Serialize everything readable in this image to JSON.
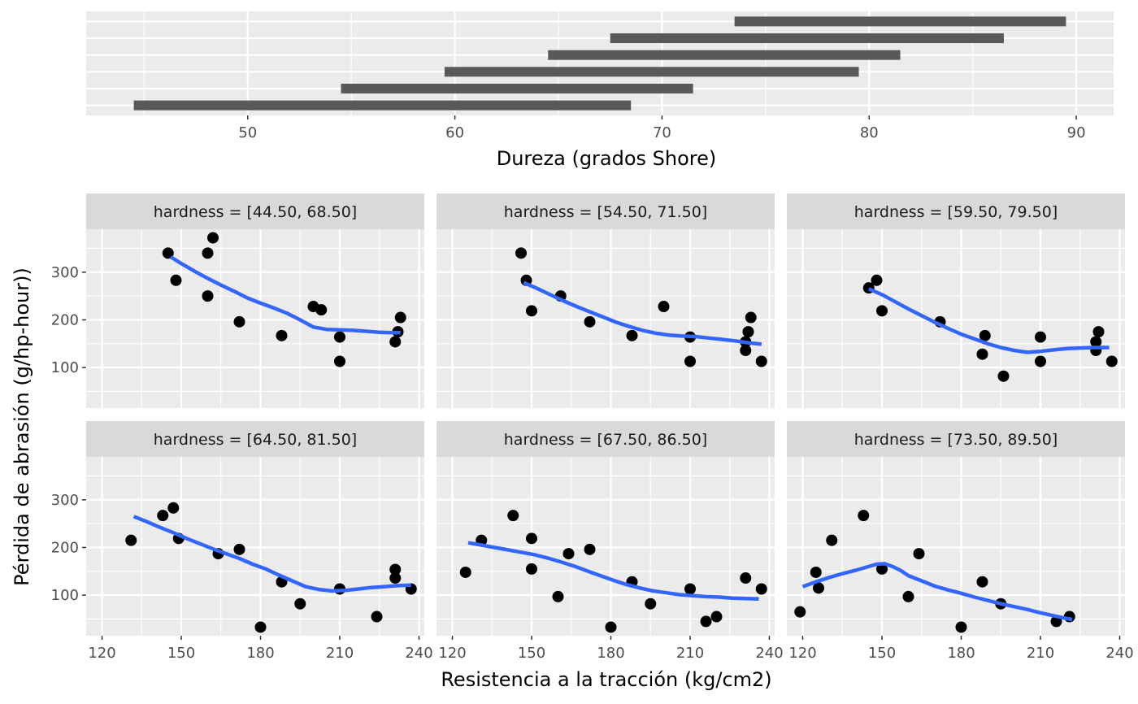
{
  "colors": {
    "panel_bg": "#EBEBEB",
    "grid": "#FFFFFF",
    "strip_bg": "#D9D9D9",
    "bar": "#595959",
    "point": "#000000",
    "smooth": "#3366FF"
  },
  "chart_data": [
    {
      "type": "bar",
      "orientation": "horizontal",
      "xlabel": "Dureza (grados Shore)",
      "xlim": [
        42.2,
        91.8
      ],
      "xticks": [
        50,
        60,
        70,
        80,
        90
      ],
      "xtick_labels": [
        "50",
        "60",
        "70",
        "80",
        "90"
      ],
      "intervals": [
        {
          "low": 44.5,
          "high": 68.5
        },
        {
          "low": 54.5,
          "high": 71.5
        },
        {
          "low": 59.5,
          "high": 79.5
        },
        {
          "low": 64.5,
          "high": 81.5
        },
        {
          "low": 67.5,
          "high": 86.5
        },
        {
          "low": 73.5,
          "high": 89.5
        }
      ]
    },
    {
      "type": "scatter",
      "xlabel": "Resistencia a la tracción (kg/cm2)",
      "ylabel": "Pérdida de abrasión (g/hp-hour))",
      "xlim": [
        114,
        242
      ],
      "ylim": [
        15,
        390
      ],
      "xticks": [
        120,
        150,
        180,
        210,
        240
      ],
      "xtick_labels": [
        "120",
        "150",
        "180",
        "210",
        "240"
      ],
      "yticks": [
        100,
        200,
        300
      ],
      "ytick_labels": [
        "100",
        "200",
        "300"
      ],
      "grid": true,
      "smooth": "loess",
      "panels": [
        {
          "label": "hardness = [44.50, 68.50]",
          "points": [
            [
              145,
              340
            ],
            [
              148,
              283
            ],
            [
              160,
              340
            ],
            [
              160,
              250
            ],
            [
              162,
              372
            ],
            [
              172,
              196
            ],
            [
              188,
              167
            ],
            [
              200,
              228
            ],
            [
              203,
              221
            ],
            [
              210,
              164
            ],
            [
              210,
              113
            ],
            [
              231,
              154
            ],
            [
              232,
              175
            ],
            [
              233,
              205
            ]
          ],
          "smooth": [
            [
              146,
              332
            ],
            [
              150,
              318
            ],
            [
              155,
              302
            ],
            [
              160,
              287
            ],
            [
              165,
              273
            ],
            [
              170,
              260
            ],
            [
              175,
              246
            ],
            [
              180,
              235
            ],
            [
              185,
              225
            ],
            [
              190,
              214
            ],
            [
              195,
              200
            ],
            [
              200,
              185
            ],
            [
              205,
              180
            ],
            [
              210,
              179
            ],
            [
              215,
              178
            ],
            [
              220,
              176
            ],
            [
              225,
              174
            ],
            [
              230,
              173
            ],
            [
              233,
              173
            ]
          ]
        },
        {
          "label": "hardness = [54.50, 71.50]",
          "points": [
            [
              146,
              340
            ],
            [
              148,
              283
            ],
            [
              150,
              219
            ],
            [
              161,
              250
            ],
            [
              172,
              196
            ],
            [
              188,
              167
            ],
            [
              200,
              228
            ],
            [
              210,
              164
            ],
            [
              210,
              113
            ],
            [
              231,
              136
            ],
            [
              232,
              175
            ],
            [
              233,
              205
            ],
            [
              231,
              154
            ],
            [
              237,
              113
            ]
          ],
          "smooth": [
            [
              147,
              278
            ],
            [
              152,
              266
            ],
            [
              157,
              253
            ],
            [
              162,
              240
            ],
            [
              167,
              228
            ],
            [
              172,
              217
            ],
            [
              177,
              206
            ],
            [
              182,
              195
            ],
            [
              187,
              186
            ],
            [
              192,
              178
            ],
            [
              197,
              172
            ],
            [
              202,
              168
            ],
            [
              207,
              166
            ],
            [
              212,
              165
            ],
            [
              217,
              162
            ],
            [
              222,
              159
            ],
            [
              227,
              156
            ],
            [
              232,
              152
            ],
            [
              237,
              149
            ]
          ]
        },
        {
          "label": "hardness = [59.50, 79.50]",
          "points": [
            [
              145,
              267
            ],
            [
              148,
              283
            ],
            [
              150,
              219
            ],
            [
              172,
              196
            ],
            [
              188,
              128
            ],
            [
              189,
              167
            ],
            [
              196,
              82
            ],
            [
              210,
              164
            ],
            [
              210,
              113
            ],
            [
              231,
              136
            ],
            [
              231,
              154
            ],
            [
              232,
              175
            ],
            [
              237,
              113
            ]
          ],
          "smooth": [
            [
              145,
              265
            ],
            [
              150,
              253
            ],
            [
              155,
              238
            ],
            [
              160,
              223
            ],
            [
              165,
              209
            ],
            [
              170,
              195
            ],
            [
              175,
              182
            ],
            [
              180,
              170
            ],
            [
              185,
              160
            ],
            [
              190,
              150
            ],
            [
              195,
              142
            ],
            [
              200,
              136
            ],
            [
              205,
              132
            ],
            [
              210,
              134
            ],
            [
              215,
              137
            ],
            [
              220,
              140
            ],
            [
              225,
              141
            ],
            [
              230,
              142
            ],
            [
              236,
              142
            ]
          ]
        },
        {
          "label": "hardness = [64.50, 81.50]",
          "points": [
            [
              131,
              215
            ],
            [
              143,
              267
            ],
            [
              147,
              283
            ],
            [
              149,
              219
            ],
            [
              164,
              187
            ],
            [
              172,
              196
            ],
            [
              180,
              33
            ],
            [
              188,
              128
            ],
            [
              195,
              82
            ],
            [
              210,
              113
            ],
            [
              224,
              55
            ],
            [
              231,
              136
            ],
            [
              231,
              154
            ],
            [
              237,
              113
            ]
          ],
          "smooth": [
            [
              132,
              265
            ],
            [
              137,
              254
            ],
            [
              142,
              242
            ],
            [
              147,
              231
            ],
            [
              152,
              219
            ],
            [
              157,
              208
            ],
            [
              162,
              197
            ],
            [
              167,
              187
            ],
            [
              172,
              177
            ],
            [
              177,
              165
            ],
            [
              182,
              155
            ],
            [
              187,
              142
            ],
            [
              192,
              130
            ],
            [
              197,
              118
            ],
            [
              202,
              112
            ],
            [
              207,
              109
            ],
            [
              212,
              110
            ],
            [
              217,
              113
            ],
            [
              222,
              116
            ],
            [
              227,
              118
            ],
            [
              232,
              120
            ],
            [
              237,
              121
            ]
          ]
        },
        {
          "label": "hardness = [67.50, 86.50]",
          "points": [
            [
              125,
              148
            ],
            [
              131,
              215
            ],
            [
              143,
              267
            ],
            [
              150,
              219
            ],
            [
              150,
              155
            ],
            [
              160,
              97
            ],
            [
              164,
              187
            ],
            [
              172,
              196
            ],
            [
              180,
              33
            ],
            [
              188,
              128
            ],
            [
              195,
              82
            ],
            [
              210,
              113
            ],
            [
              216,
              45
            ],
            [
              220,
              55
            ],
            [
              231,
              136
            ],
            [
              237,
              113
            ]
          ],
          "smooth": [
            [
              126,
              210
            ],
            [
              131,
              205
            ],
            [
              136,
              200
            ],
            [
              141,
              195
            ],
            [
              146,
              190
            ],
            [
              151,
              185
            ],
            [
              156,
              178
            ],
            [
              161,
              170
            ],
            [
              166,
              161
            ],
            [
              171,
              151
            ],
            [
              176,
              141
            ],
            [
              181,
              131
            ],
            [
              186,
              122
            ],
            [
              191,
              115
            ],
            [
              196,
              109
            ],
            [
              201,
              105
            ],
            [
              206,
              101
            ],
            [
              211,
              99
            ],
            [
              216,
              97
            ],
            [
              221,
              96
            ],
            [
              226,
              94
            ],
            [
              231,
              93
            ],
            [
              236,
              92
            ]
          ]
        },
        {
          "label": "hardness = [73.50, 89.50]",
          "points": [
            [
              119,
              65
            ],
            [
              125,
              148
            ],
            [
              126,
              115
            ],
            [
              131,
              215
            ],
            [
              143,
              267
            ],
            [
              150,
              155
            ],
            [
              160,
              97
            ],
            [
              164,
              187
            ],
            [
              180,
              33
            ],
            [
              188,
              128
            ],
            [
              195,
              82
            ],
            [
              216,
              45
            ],
            [
              221,
              55
            ]
          ],
          "smooth": [
            [
              120,
              118
            ],
            [
              125,
              128
            ],
            [
              130,
              137
            ],
            [
              135,
              145
            ],
            [
              140,
              152
            ],
            [
              145,
              160
            ],
            [
              148,
              165
            ],
            [
              151,
              166
            ],
            [
              154,
              160
            ],
            [
              157,
              152
            ],
            [
              160,
              141
            ],
            [
              165,
              130
            ],
            [
              170,
              119
            ],
            [
              175,
              111
            ],
            [
              180,
              104
            ],
            [
              185,
              96
            ],
            [
              190,
              89
            ],
            [
              195,
              82
            ],
            [
              200,
              76
            ],
            [
              205,
              70
            ],
            [
              210,
              63
            ],
            [
              215,
              57
            ],
            [
              220,
              51
            ],
            [
              222,
              49
            ]
          ]
        }
      ]
    }
  ]
}
